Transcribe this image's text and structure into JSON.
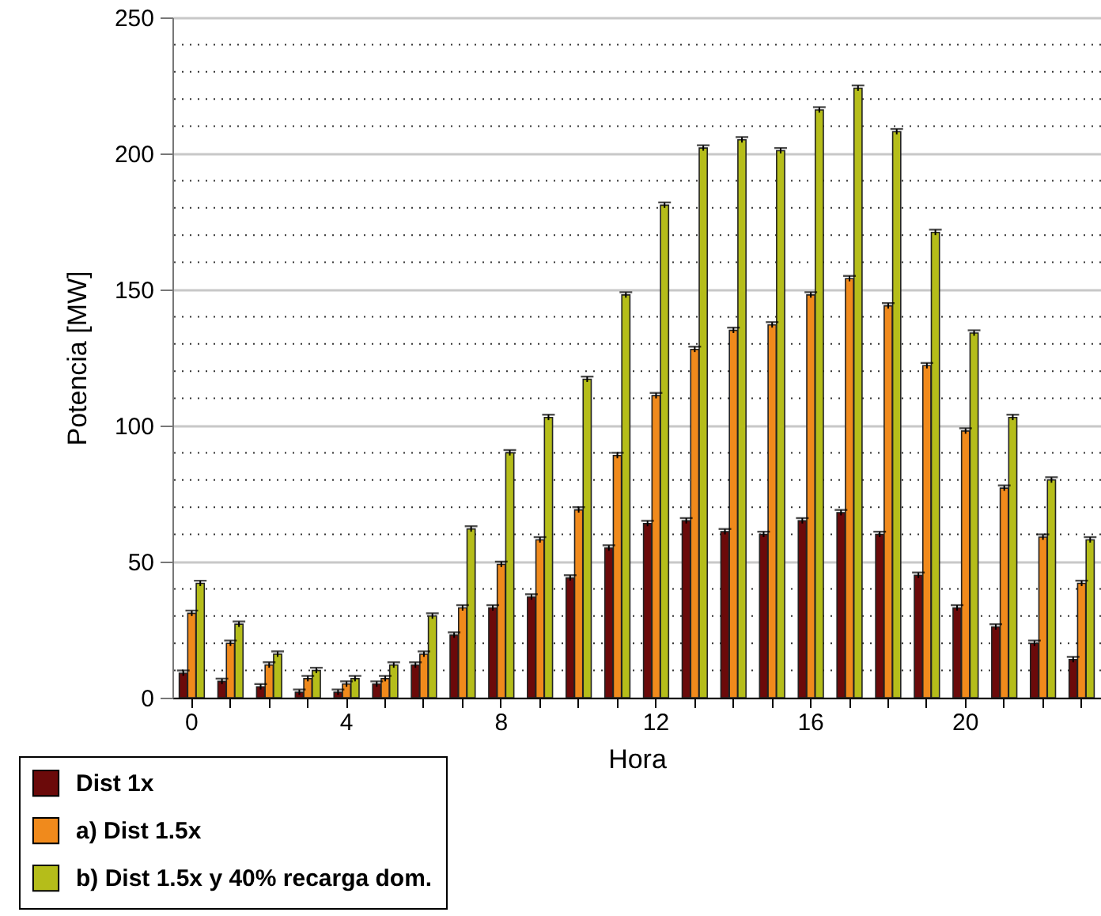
{
  "chart_data": {
    "type": "bar",
    "xlabel": "Hora",
    "ylabel": "Potencia [MW]",
    "categories": [
      "0",
      null,
      null,
      null,
      "4",
      null,
      null,
      null,
      "8",
      null,
      null,
      null,
      "12",
      null,
      null,
      null,
      "16",
      null,
      null,
      null,
      "20",
      null,
      null,
      null
    ],
    "series": [
      {
        "name": "Dist 1x",
        "color": "#6b0a0a",
        "values": [
          9,
          6,
          4,
          2,
          2,
          5,
          12,
          23,
          33,
          37,
          44,
          55,
          64,
          65,
          61,
          60,
          65,
          68,
          60,
          45,
          33,
          26,
          20,
          14
        ],
        "errors": [
          1,
          1,
          1,
          1,
          1,
          1,
          1,
          1,
          1,
          1,
          1,
          1,
          1,
          1,
          1,
          1,
          1,
          1,
          1,
          1,
          1,
          1,
          1,
          1
        ]
      },
      {
        "name": "a) Dist 1.5x",
        "color": "#f08a1c",
        "values": [
          31,
          20,
          12,
          7,
          5,
          7,
          16,
          33,
          49,
          58,
          69,
          89,
          111,
          128,
          135,
          137,
          148,
          154,
          144,
          122,
          98,
          77,
          59,
          42
        ],
        "errors": [
          1,
          1,
          1,
          1,
          1,
          1,
          1,
          1,
          1,
          1,
          1,
          1,
          1,
          1,
          1,
          1,
          1,
          1,
          1,
          1,
          1,
          1,
          1,
          1
        ]
      },
      {
        "name": "b) Dist 1.5x y 40% recarga dom.",
        "color": "#b5bd1a",
        "values": [
          42,
          27,
          16,
          10,
          7,
          12,
          30,
          62,
          90,
          103,
          117,
          148,
          181,
          202,
          205,
          201,
          216,
          224,
          208,
          171,
          134,
          103,
          80,
          58
        ],
        "errors": [
          1,
          1,
          1,
          1,
          1,
          1,
          1,
          1,
          1,
          1,
          1,
          1,
          1,
          1,
          1,
          1,
          1,
          1,
          1,
          1,
          1,
          1,
          1,
          1
        ]
      }
    ],
    "ylim": [
      0,
      250
    ],
    "yticks": [
      0,
      50,
      100,
      150,
      200,
      250
    ],
    "grid": "y",
    "legend": "bottom left"
  }
}
